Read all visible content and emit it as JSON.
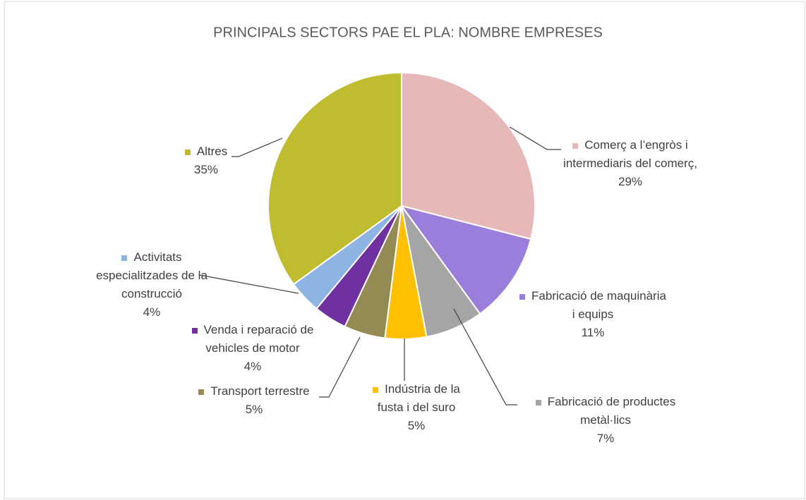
{
  "chart_data": {
    "type": "pie",
    "title": "PRINCIPALS SECTORS PAE EL PLA: NOMBRE EMPRESES",
    "categories": [
      "Comerç a l’engròs i intermediaris del comerç,",
      "Fabricació de maquinària i equips",
      "Fabricació de productes metàl·lics",
      "Indústria de la fusta i del suro",
      "Transport terrestre",
      "Venda i reparació de vehicles de motor",
      "Activitats especialitzades de la construcció",
      "Altres"
    ],
    "values": [
      29,
      11,
      7,
      5,
      5,
      4,
      4,
      35
    ],
    "value_labels": [
      "29%",
      "11%",
      "7%",
      "5%",
      "5%",
      "4%",
      "4%",
      "35%"
    ],
    "colors": [
      "#e6b8b7",
      "#9b7edb",
      "#a5a5a5",
      "#ffc000",
      "#948a54",
      "#7030a0",
      "#8db4e2",
      "#c0bc2f"
    ]
  }
}
